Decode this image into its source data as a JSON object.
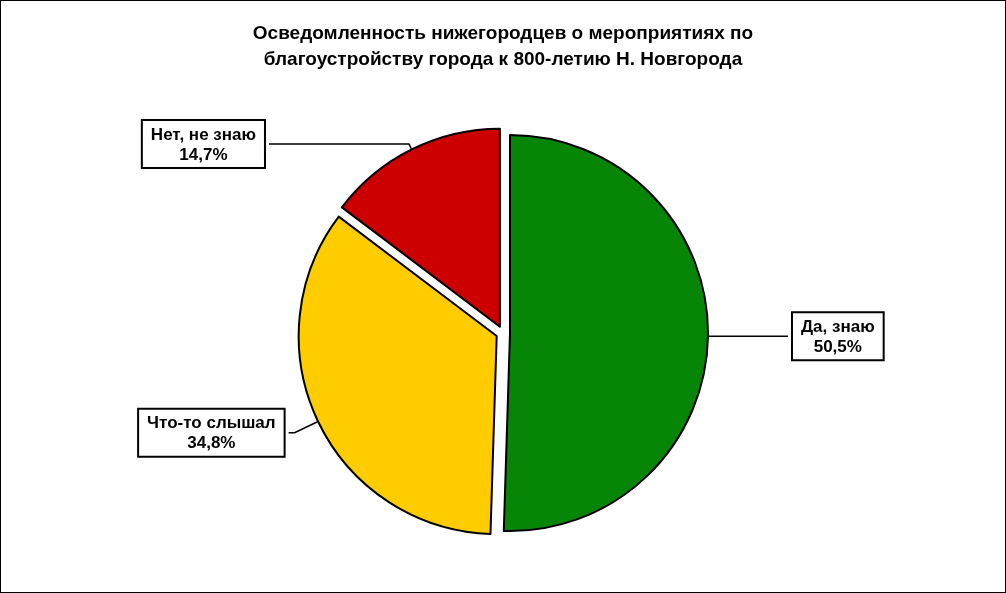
{
  "chart_data": {
    "type": "pie",
    "title": "Осведомленность нижегородцев о мероприятиях по благоустройству города к 800-летию Н. Новгорода",
    "categories": [
      "Да, знаю",
      "Что-то слышал",
      "Нет, не знаю"
    ],
    "values": [
      50.5,
      34.8,
      14.7
    ],
    "value_labels": [
      "50,5%",
      "34,8%",
      "14,7%"
    ],
    "colors": [
      "#078507",
      "#ffcc00",
      "#cc0000"
    ]
  }
}
